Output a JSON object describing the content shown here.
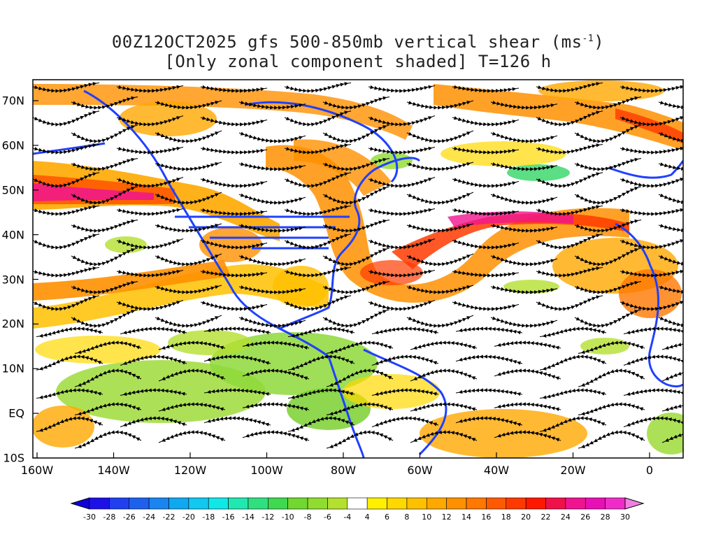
{
  "title": {
    "line1_main": "00Z12OCT2025 gfs 500-850mb vertical shear (ms",
    "line1_sup": "-1",
    "line1_end": ")",
    "line2": "[Only zonal component shaded] T=126 h"
  },
  "axes": {
    "x_ticks": [
      "160W",
      "140W",
      "120W",
      "100W",
      "80W",
      "60W",
      "40W",
      "20W",
      "0"
    ],
    "y_ticks": [
      "70N",
      "60N",
      "50N",
      "40N",
      "30N",
      "20N",
      "10N",
      "EQ",
      "10S"
    ]
  },
  "colorbar": {
    "labels": [
      "-30",
      "-28",
      "-26",
      "-24",
      "-22",
      "-20",
      "-18",
      "-16",
      "-14",
      "-12",
      "-10",
      "-8",
      "-6",
      "-4",
      "4",
      "6",
      "8",
      "10",
      "12",
      "14",
      "16",
      "18",
      "20",
      "22",
      "24",
      "26",
      "28",
      "30"
    ],
    "colors": [
      "#1d10e6",
      "#2040f0",
      "#1e60ee",
      "#1a84f0",
      "#10a8f0",
      "#10c8f0",
      "#10e8e8",
      "#20e8b0",
      "#30e080",
      "#40d850",
      "#70d830",
      "#90dc30",
      "#b4e030",
      "#ffffff",
      "#fff000",
      "#ffd800",
      "#ffc000",
      "#ffa800",
      "#ff9000",
      "#ff7800",
      "#ff5a00",
      "#ff3a00",
      "#ff1800",
      "#f0104a",
      "#f01490",
      "#e810b4",
      "#f02cc8"
    ],
    "arrow_left_color": "#1000d8",
    "arrow_right_color": "#f080e0"
  },
  "map": {
    "coastline_color": "#2040ff",
    "streamline_color": "#000000"
  }
}
